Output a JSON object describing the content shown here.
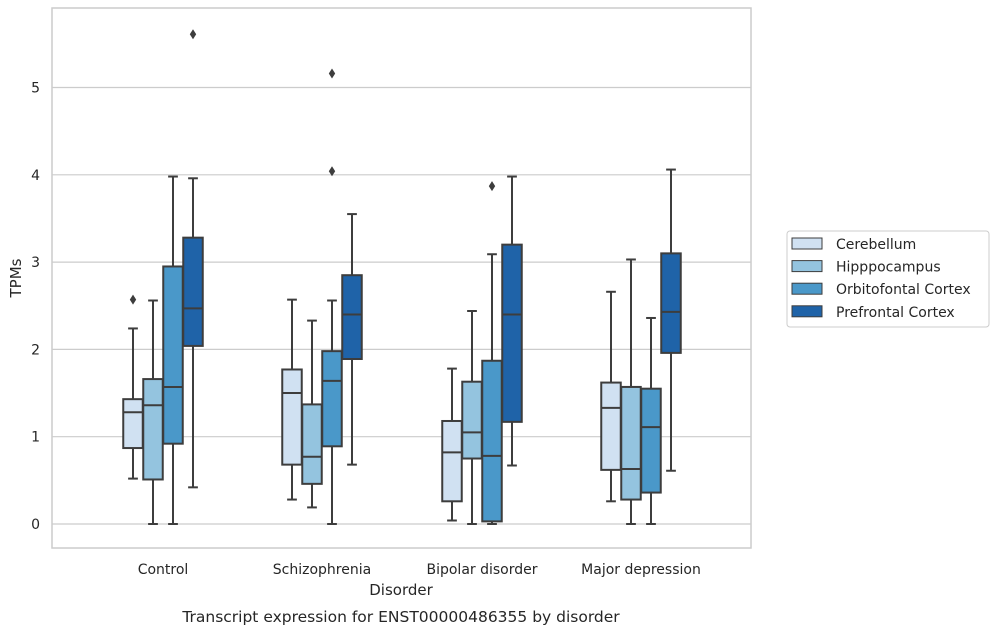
{
  "caption": "Transcript expression for ENST00000486355 by disorder",
  "chart_data": {
    "type": "box",
    "xlabel": "Disorder",
    "ylabel": "TPMs",
    "ylim": [
      -0.27,
      5.88
    ],
    "yticks": [
      0,
      1,
      2,
      3,
      4,
      5
    ],
    "grid": "horizontal",
    "legend_position": "right",
    "colors": [
      "#d0e1f2",
      "#94c4df",
      "#4a98c9",
      "#1f63a8"
    ],
    "categories": [
      "Control",
      "Schizophrenia",
      "Bipolar disorder",
      "Major depression"
    ],
    "series": [
      {
        "name": "Cerebellum",
        "boxes": [
          {
            "whislo": 0.52,
            "q1": 0.87,
            "med": 1.28,
            "q3": 1.43,
            "whishi": 2.24,
            "fliers": [
              2.57
            ]
          },
          {
            "whislo": 0.28,
            "q1": 0.68,
            "med": 1.5,
            "q3": 1.77,
            "whishi": 2.57,
            "fliers": []
          },
          {
            "whislo": 0.04,
            "q1": 0.26,
            "med": 0.82,
            "q3": 1.18,
            "whishi": 1.78,
            "fliers": []
          },
          {
            "whislo": 0.26,
            "q1": 0.62,
            "med": 1.33,
            "q3": 1.62,
            "whishi": 2.66,
            "fliers": []
          }
        ]
      },
      {
        "name": "Hipppocampus",
        "boxes": [
          {
            "whislo": 0.0,
            "q1": 0.51,
            "med": 1.36,
            "q3": 1.66,
            "whishi": 2.56,
            "fliers": []
          },
          {
            "whislo": 0.19,
            "q1": 0.46,
            "med": 0.77,
            "q3": 1.37,
            "whishi": 2.33,
            "fliers": []
          },
          {
            "whislo": 0.0,
            "q1": 0.75,
            "med": 1.05,
            "q3": 1.63,
            "whishi": 2.44,
            "fliers": []
          },
          {
            "whislo": 0.0,
            "q1": 0.28,
            "med": 0.63,
            "q3": 1.57,
            "whishi": 3.03,
            "fliers": []
          }
        ]
      },
      {
        "name": "Orbitofontal Cortex",
        "boxes": [
          {
            "whislo": 0.0,
            "q1": 0.92,
            "med": 1.57,
            "q3": 2.95,
            "whishi": 3.98,
            "fliers": []
          },
          {
            "whislo": 0.0,
            "q1": 0.89,
            "med": 1.64,
            "q3": 1.98,
            "whishi": 2.56,
            "fliers": [
              4.04,
              5.16
            ]
          },
          {
            "whislo": 0.0,
            "q1": 0.03,
            "med": 0.78,
            "q3": 1.87,
            "whishi": 3.09,
            "fliers": [
              3.87
            ]
          },
          {
            "whislo": 0.0,
            "q1": 0.36,
            "med": 1.11,
            "q3": 1.55,
            "whishi": 2.36,
            "fliers": []
          }
        ]
      },
      {
        "name": "Prefrontal Cortex",
        "boxes": [
          {
            "whislo": 0.42,
            "q1": 2.04,
            "med": 2.47,
            "q3": 3.28,
            "whishi": 3.96,
            "fliers": [
              5.61
            ]
          },
          {
            "whislo": 0.68,
            "q1": 1.89,
            "med": 2.4,
            "q3": 2.85,
            "whishi": 3.55,
            "fliers": []
          },
          {
            "whislo": 0.67,
            "q1": 1.17,
            "med": 2.4,
            "q3": 3.2,
            "whishi": 3.98,
            "fliers": []
          },
          {
            "whislo": 0.61,
            "q1": 1.96,
            "med": 2.43,
            "q3": 3.1,
            "whishi": 4.06,
            "fliers": []
          }
        ]
      }
    ]
  }
}
